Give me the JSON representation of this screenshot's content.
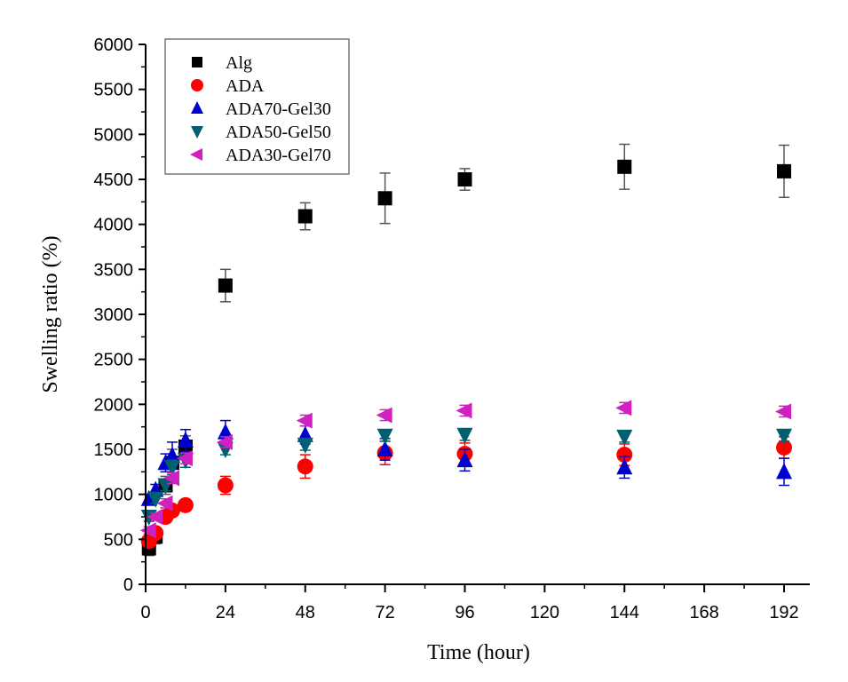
{
  "chart_data": {
    "type": "scatter",
    "title": "",
    "xlabel": "Time (hour)",
    "ylabel": "Swelling ratio (%)",
    "xlim": [
      0,
      200
    ],
    "ylim": [
      0,
      6000
    ],
    "xticks": [
      0,
      24,
      48,
      72,
      96,
      120,
      144,
      168,
      192
    ],
    "yticks": [
      0,
      500,
      1000,
      1500,
      2000,
      2500,
      3000,
      3500,
      4000,
      4500,
      5000,
      5500,
      6000
    ],
    "grid": false,
    "legend_position": "top-left",
    "series": [
      {
        "name": "Alg",
        "marker": "square",
        "color": "#000000",
        "x": [
          1,
          3,
          6,
          8,
          12,
          24,
          48,
          72,
          96,
          144,
          192
        ],
        "y": [
          400,
          530,
          1100,
          1350,
          1530,
          3320,
          4090,
          4290,
          4500,
          4640,
          4590
        ],
        "err": [
          80,
          80,
          100,
          150,
          120,
          180,
          150,
          280,
          120,
          250,
          290
        ]
      },
      {
        "name": "ADA",
        "marker": "circle",
        "color": "#ff0000",
        "x": [
          1,
          3,
          6,
          8,
          12,
          24,
          48,
          72,
          96,
          144,
          192
        ],
        "y": [
          480,
          570,
          750,
          820,
          880,
          1100,
          1310,
          1460,
          1450,
          1440,
          1520
        ],
        "err": [
          50,
          50,
          60,
          60,
          50,
          100,
          130,
          130,
          120,
          120,
          120
        ]
      },
      {
        "name": "ADA70-Gel30",
        "marker": "triangle-up",
        "color": "#0000cc",
        "x": [
          1,
          3,
          6,
          8,
          12,
          24,
          48,
          72,
          96,
          144,
          192
        ],
        "y": [
          950,
          1050,
          1350,
          1430,
          1600,
          1690,
          1660,
          1500,
          1380,
          1300,
          1250
        ],
        "err": [
          50,
          60,
          100,
          150,
          120,
          130,
          100,
          120,
          120,
          120,
          150
        ]
      },
      {
        "name": "ADA50-Gel50",
        "marker": "triangle-down",
        "color": "#006070",
        "x": [
          1,
          3,
          6,
          8,
          12,
          24,
          48,
          72,
          96,
          144,
          192
        ],
        "y": [
          750,
          950,
          1100,
          1300,
          1380,
          1500,
          1550,
          1650,
          1660,
          1640,
          1650
        ],
        "err": [
          50,
          50,
          60,
          80,
          80,
          60,
          60,
          60,
          60,
          60,
          60
        ]
      },
      {
        "name": "ADA30-Gel70",
        "marker": "triangle-left",
        "color": "#d020c0",
        "x": [
          1,
          3,
          6,
          8,
          12,
          24,
          48,
          72,
          96,
          144,
          192
        ],
        "y": [
          600,
          750,
          900,
          1180,
          1400,
          1580,
          1820,
          1880,
          1930,
          1960,
          1920
        ],
        "err": [
          40,
          40,
          50,
          60,
          60,
          60,
          60,
          60,
          60,
          60,
          60
        ]
      }
    ]
  }
}
